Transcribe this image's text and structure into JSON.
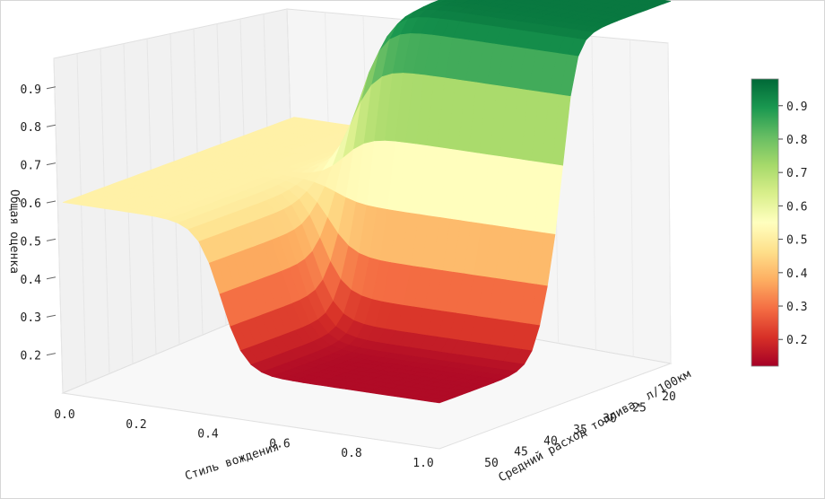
{
  "chart_data": {
    "type": "surface",
    "xlabel": "Стиль вождения",
    "ylabel": "Средний расход топлива, л/100км",
    "zlabel": "Общая оценка",
    "x_ticks": [
      "0.0",
      "0.2",
      "0.4",
      "0.6",
      "0.8",
      "1.0"
    ],
    "y_ticks": [
      "20",
      "25",
      "30",
      "35",
      "40",
      "45",
      "50"
    ],
    "z_ticks": [
      "0.2",
      "0.3",
      "0.4",
      "0.5",
      "0.6",
      "0.7",
      "0.8",
      "0.9"
    ],
    "colorbar_ticks": [
      "0.2",
      "0.3",
      "0.4",
      "0.5",
      "0.6",
      "0.7",
      "0.8",
      "0.9"
    ],
    "colormap": "RdYlGn",
    "zlim": [
      0.1,
      0.98
    ],
    "xlim": [
      0.0,
      1.0
    ],
    "ylim": [
      20,
      50
    ],
    "surface_profile": {
      "description_levels": [
        0.5,
        0.95,
        0.12
      ],
      "x_at_low_fuel": {
        "x": [
          0.0,
          0.35,
          0.45,
          1.0
        ],
        "z": [
          0.5,
          0.5,
          0.95,
          0.95
        ]
      },
      "x_at_high_fuel": {
        "x": [
          0.0,
          0.35,
          0.45,
          1.0
        ],
        "z": [
          0.5,
          0.5,
          0.12,
          0.12
        ]
      }
    },
    "colors": {
      "stops": [
        "#a50026",
        "#d73027",
        "#f46d43",
        "#fdae61",
        "#fee08b",
        "#ffffbf",
        "#d9ef8b",
        "#a6d96a",
        "#66bd63",
        "#1a9850",
        "#006837"
      ]
    }
  }
}
